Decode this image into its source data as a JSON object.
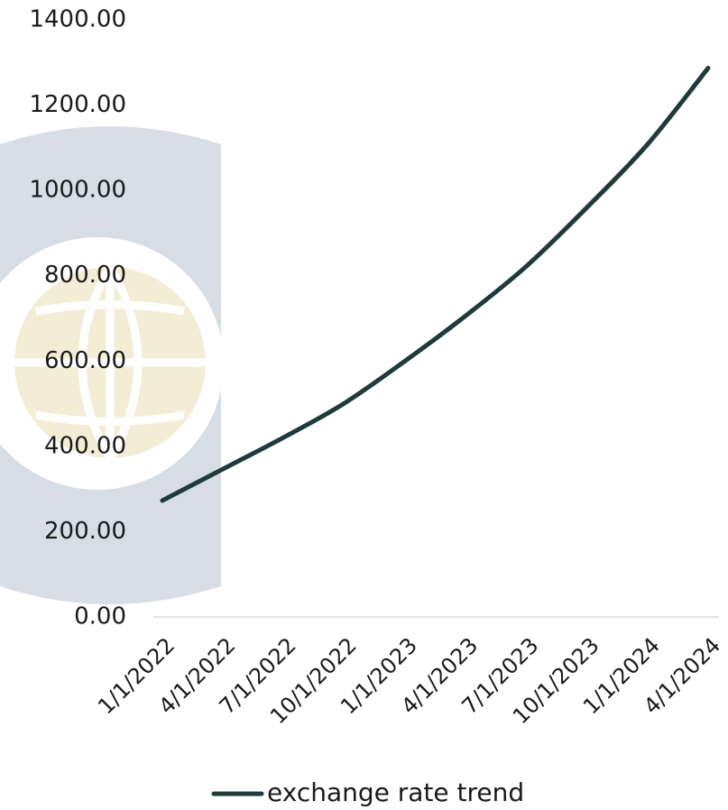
{
  "chart_data": {
    "type": "line",
    "categories": [
      "1/1/2022",
      "4/1/2022",
      "7/1/2022",
      "10/1/2022",
      "1/1/2023",
      "4/1/2023",
      "7/1/2023",
      "10/1/2023",
      "1/1/2024",
      "4/1/2024"
    ],
    "series": [
      {
        "name": "exchange rate trend",
        "color": "#1e3a3a",
        "values": [
          273,
          347,
          421,
          501,
          600,
          706,
          822,
          960,
          1108,
          1287
        ]
      }
    ],
    "ylim": [
      0,
      1400
    ],
    "yticks": [
      {
        "value": 0,
        "label": "0.00"
      },
      {
        "value": 200,
        "label": "200.00"
      },
      {
        "value": 400,
        "label": "400.00"
      },
      {
        "value": 600,
        "label": "600.00"
      },
      {
        "value": 800,
        "label": "800.00"
      },
      {
        "value": 1000,
        "label": "1000.00"
      },
      {
        "value": 1200,
        "label": "1200.00"
      },
      {
        "value": 1400,
        "label": "1400.00"
      }
    ],
    "grid": false,
    "legend": "bottom"
  }
}
